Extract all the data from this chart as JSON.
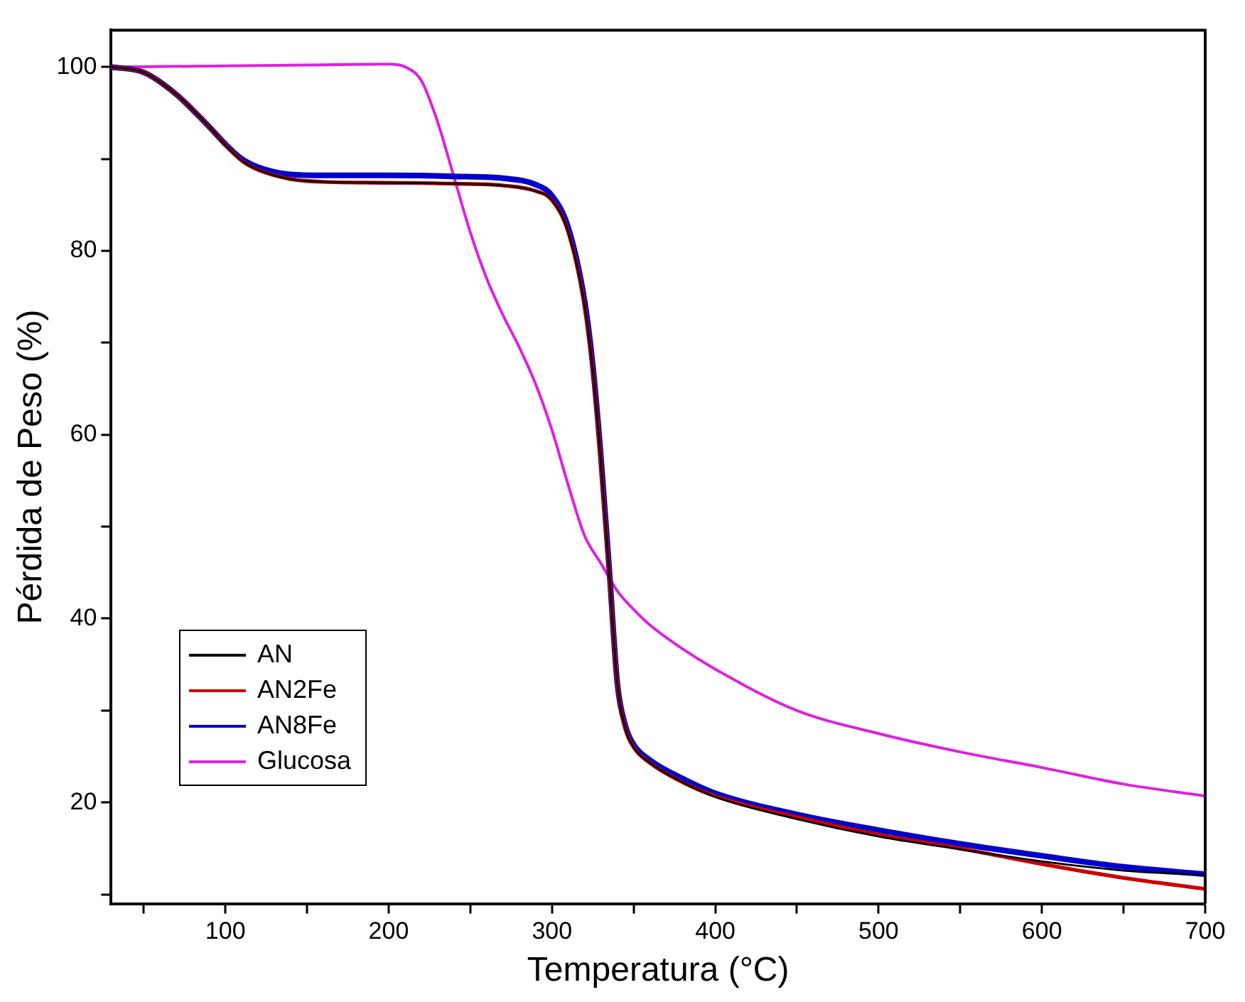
{
  "chart_data": {
    "type": "line",
    "xlabel": "Temperatura (°C)",
    "ylabel": "Pérdida de Peso (%)",
    "xlim": [
      30,
      700
    ],
    "ylim": [
      9,
      104
    ],
    "xticks": [
      {
        "value": 50,
        "label": null
      },
      100,
      {
        "value": 150,
        "label": null
      },
      200,
      {
        "value": 250,
        "label": null
      },
      300,
      {
        "value": 350,
        "label": null
      },
      400,
      {
        "value": 450,
        "label": null
      },
      500,
      {
        "value": 550,
        "label": null
      },
      600,
      {
        "value": 650,
        "label": null
      },
      700
    ],
    "yticks": [
      {
        "value": 10,
        "label": null
      },
      20,
      {
        "value": 30,
        "label": null
      },
      40,
      {
        "value": 50,
        "label": null
      },
      60,
      {
        "value": 70,
        "label": null
      },
      80,
      {
        "value": 90,
        "label": null
      },
      100
    ],
    "grid": false,
    "legend": "bottom left",
    "marker": "none",
    "line_style": "solid",
    "series": [
      {
        "name": "AN",
        "color": "#000000",
        "x": [
          30,
          50,
          70,
          90,
          100,
          110,
          120,
          140,
          160,
          200,
          240,
          270,
          290,
          300,
          310,
          320,
          325,
          330,
          335,
          340,
          345,
          350,
          360,
          380,
          400,
          450,
          500,
          550,
          600,
          650,
          700
        ],
        "values": [
          100,
          99.4,
          97,
          93.5,
          91.5,
          89.8,
          88.8,
          87.8,
          87.5,
          87.4,
          87.3,
          87.1,
          86.5,
          85.5,
          82,
          74,
          67,
          57,
          45,
          33,
          28,
          26,
          24.3,
          22.2,
          20.6,
          18.2,
          16.3,
          14.9,
          13.6,
          12.6,
          12.1
        ]
      },
      {
        "name": "AN2Fe",
        "color": "#cc0000",
        "x": [
          30,
          50,
          70,
          90,
          100,
          110,
          120,
          140,
          160,
          200,
          240,
          270,
          290,
          300,
          310,
          320,
          325,
          330,
          335,
          340,
          345,
          350,
          360,
          380,
          400,
          450,
          500,
          550,
          600,
          650,
          700
        ],
        "values": [
          100,
          99.4,
          97,
          93.5,
          91.5,
          89.8,
          88.8,
          87.8,
          87.5,
          87.4,
          87.3,
          87.1,
          86.5,
          85.5,
          82,
          74,
          67,
          57,
          45,
          33,
          28,
          26,
          24.3,
          22.2,
          20.7,
          18.4,
          16.5,
          15,
          13.3,
          11.8,
          10.6
        ]
      },
      {
        "name": "AN8Fe",
        "color": "#0000cc",
        "x": [
          30,
          50,
          70,
          90,
          100,
          110,
          120,
          140,
          160,
          200,
          240,
          270,
          290,
          300,
          310,
          320,
          325,
          330,
          335,
          340,
          345,
          350,
          360,
          380,
          400,
          450,
          500,
          550,
          600,
          650,
          700
        ],
        "values": [
          100,
          99.4,
          97,
          93.5,
          91.6,
          90,
          89.1,
          88.3,
          88.2,
          88.2,
          88.1,
          87.9,
          87.2,
          86,
          82.5,
          74.5,
          67.5,
          57.5,
          45.5,
          33,
          28.3,
          26.3,
          24.6,
          22.6,
          21,
          18.7,
          17,
          15.5,
          14.2,
          13,
          12.2
        ]
      },
      {
        "name": "Glucosa",
        "color": "#dd22dd",
        "x": [
          30,
          100,
          150,
          200,
          210,
          220,
          230,
          240,
          250,
          260,
          270,
          280,
          290,
          300,
          310,
          320,
          330,
          340,
          350,
          360,
          380,
          400,
          450,
          500,
          550,
          600,
          650,
          700
        ],
        "values": [
          100,
          100.1,
          100.2,
          100.3,
          100,
          98.5,
          94,
          88,
          82,
          77,
          73,
          69.5,
          65.5,
          60.5,
          54.5,
          49,
          46,
          43,
          41,
          39.3,
          36.7,
          34.5,
          30,
          27.5,
          25.5,
          23.8,
          22,
          20.7
        ]
      }
    ]
  }
}
